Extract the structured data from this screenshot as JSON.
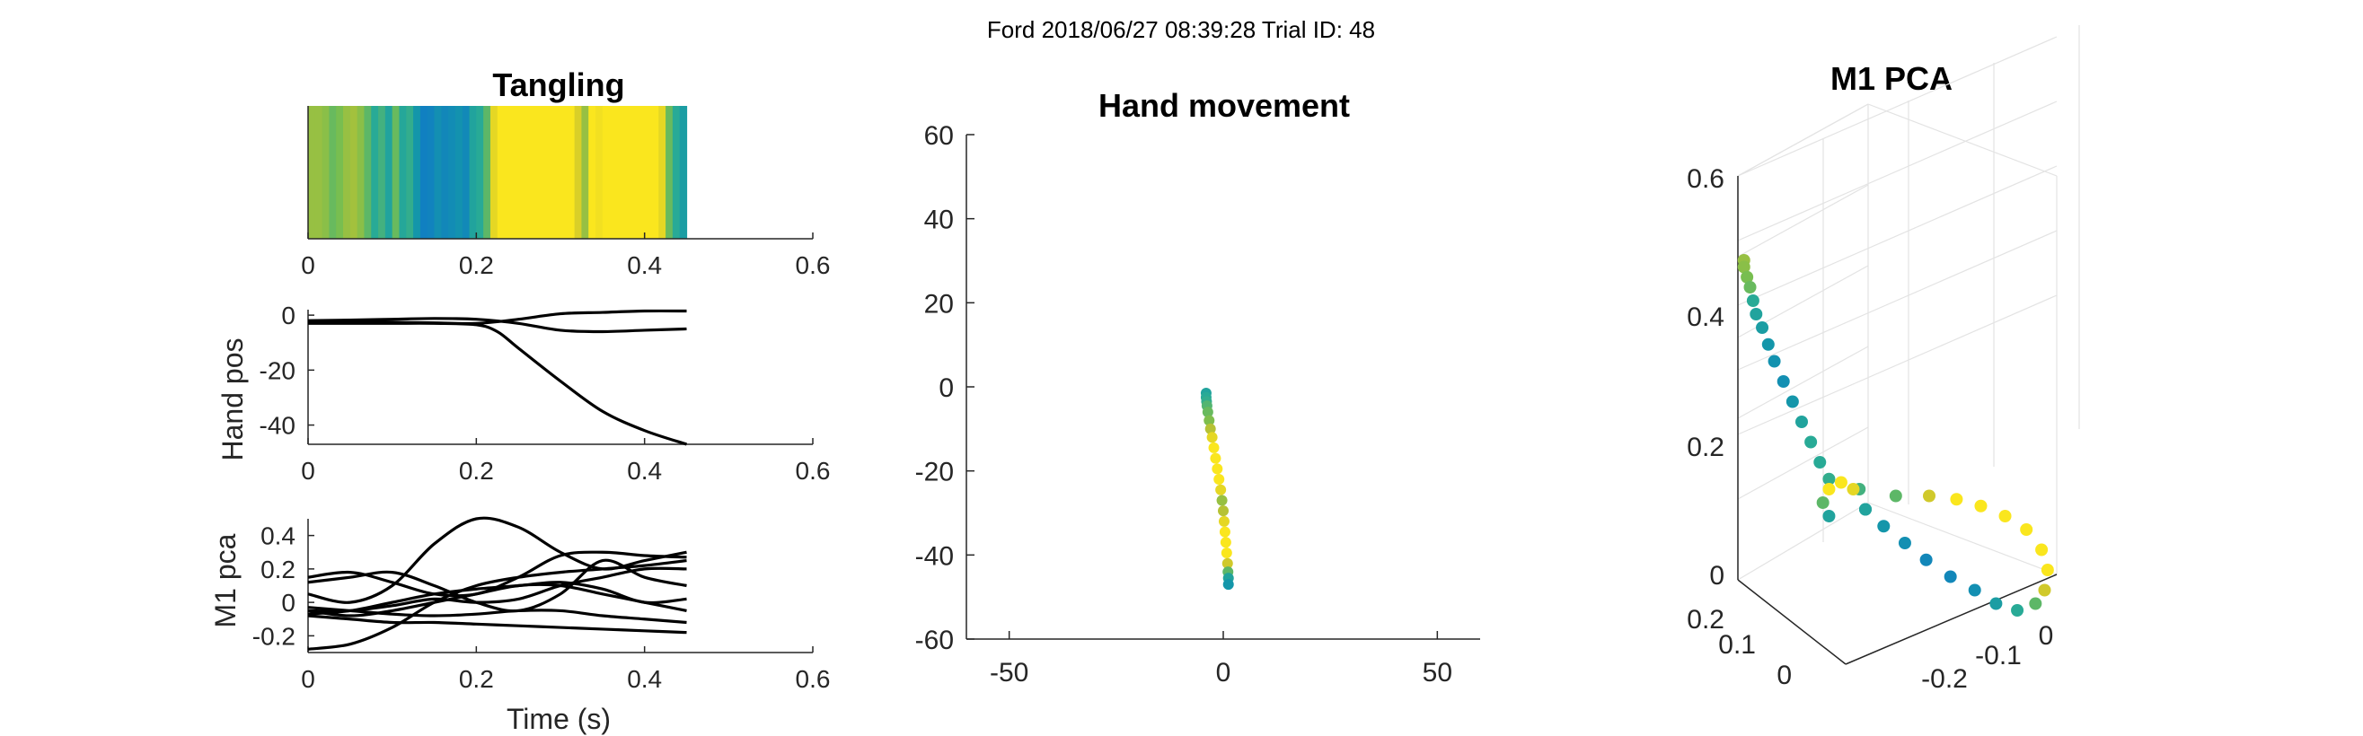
{
  "figure": {
    "suptitle": "Ford 2018/06/27 08:39:28 Trial ID: 48"
  },
  "chart_data": [
    {
      "id": "tangling",
      "type": "heatmap",
      "title": "Tangling",
      "xlim": [
        0,
        0.6
      ],
      "xticks": [
        "0",
        "0.2",
        "0.4",
        "0.6"
      ],
      "t_end": 0.45,
      "values": [
        0.8,
        0.8,
        0.78,
        0.72,
        0.75,
        0.8,
        0.82,
        0.78,
        0.7,
        0.6,
        0.65,
        0.55,
        0.72,
        0.58,
        0.62,
        0.45,
        0.3,
        0.32,
        0.4,
        0.35,
        0.38,
        0.42,
        0.36,
        0.55,
        0.6,
        0.7,
        0.95,
        1.0,
        1.0,
        1.0,
        1.0,
        1.0,
        1.0,
        1.0,
        1.0,
        1.0,
        1.0,
        1.0,
        0.92,
        0.8,
        1.0,
        0.98,
        1.0,
        1.0,
        1.0,
        1.0,
        1.0,
        1.0,
        1.0,
        1.0,
        0.95,
        0.72,
        0.6,
        0.5
      ],
      "colormap": "parula"
    },
    {
      "id": "hand-pos",
      "type": "line",
      "title": "",
      "ylabel": "Hand pos",
      "xlim": [
        0,
        0.6
      ],
      "ylim": [
        -47,
        2
      ],
      "xticks": [
        "0",
        "0.2",
        "0.4",
        "0.6"
      ],
      "yticks": [
        "0",
        "-20",
        "-40"
      ],
      "series": [
        {
          "x": [
            0,
            0.05,
            0.1,
            0.15,
            0.2,
            0.25,
            0.3,
            0.35,
            0.4,
            0.45
          ],
          "y": [
            -2.0,
            -1.8,
            -1.5,
            -1.2,
            -1.5,
            -3.0,
            -5.5,
            -6.0,
            -5.5,
            -5.0
          ]
        },
        {
          "x": [
            0,
            0.05,
            0.1,
            0.15,
            0.2,
            0.25,
            0.3,
            0.35,
            0.4,
            0.45
          ],
          "y": [
            -2.5,
            -2.5,
            -2.6,
            -2.8,
            -3.0,
            -1.5,
            0.5,
            1.0,
            1.5,
            1.5
          ]
        },
        {
          "x": [
            0,
            0.05,
            0.1,
            0.15,
            0.2,
            0.225,
            0.25,
            0.3,
            0.35,
            0.4,
            0.45
          ],
          "y": [
            -3.0,
            -3.0,
            -3.0,
            -3.0,
            -3.5,
            -6.0,
            -12.0,
            -24.0,
            -35.0,
            -42.0,
            -47.0
          ]
        }
      ]
    },
    {
      "id": "m1-pca-traces",
      "type": "line",
      "title": "",
      "xlabel": "Time (s)",
      "ylabel": "M1 pca",
      "xlim": [
        0,
        0.6
      ],
      "ylim": [
        -0.3,
        0.5
      ],
      "xticks": [
        "0",
        "0.2",
        "0.4",
        "0.6"
      ],
      "yticks": [
        "0.4",
        "0.2",
        "0",
        "-0.2"
      ],
      "series": [
        {
          "x": [
            0,
            0.05,
            0.1,
            0.15,
            0.2,
            0.25,
            0.3,
            0.35,
            0.4,
            0.45
          ],
          "y": [
            -0.28,
            -0.25,
            -0.15,
            0.0,
            0.1,
            0.15,
            0.18,
            0.2,
            0.22,
            0.25
          ]
        },
        {
          "x": [
            0,
            0.05,
            0.1,
            0.15,
            0.2,
            0.25,
            0.3,
            0.35,
            0.4,
            0.45
          ],
          "y": [
            0.05,
            0.0,
            0.1,
            0.35,
            0.5,
            0.45,
            0.3,
            0.2,
            0.25,
            0.3
          ]
        },
        {
          "x": [
            0,
            0.05,
            0.1,
            0.15,
            0.2,
            0.25,
            0.3,
            0.35,
            0.4,
            0.45
          ],
          "y": [
            0.15,
            0.18,
            0.12,
            0.05,
            0.05,
            0.15,
            0.28,
            0.3,
            0.28,
            0.27
          ]
        },
        {
          "x": [
            0,
            0.05,
            0.1,
            0.15,
            0.2,
            0.25,
            0.3,
            0.35,
            0.4,
            0.45
          ],
          "y": [
            0.12,
            0.15,
            0.18,
            0.1,
            0.0,
            -0.05,
            0.05,
            0.25,
            0.15,
            0.1
          ]
        },
        {
          "x": [
            0,
            0.05,
            0.1,
            0.15,
            0.2,
            0.25,
            0.3,
            0.35,
            0.4,
            0.45
          ],
          "y": [
            -0.05,
            -0.08,
            -0.05,
            0.0,
            0.05,
            0.1,
            0.1,
            0.05,
            0.0,
            -0.05
          ]
        },
        {
          "x": [
            0,
            0.05,
            0.1,
            0.15,
            0.2,
            0.25,
            0.3,
            0.35,
            0.4,
            0.45
          ],
          "y": [
            -0.03,
            -0.05,
            -0.07,
            -0.08,
            -0.07,
            -0.05,
            -0.05,
            -0.08,
            -0.1,
            -0.12
          ]
        },
        {
          "x": [
            0,
            0.05,
            0.1,
            0.15,
            0.2,
            0.25,
            0.3,
            0.35,
            0.4,
            0.45
          ],
          "y": [
            -0.07,
            -0.05,
            0.0,
            0.05,
            0.08,
            0.1,
            0.12,
            0.08,
            0.0,
            0.02
          ]
        },
        {
          "x": [
            0,
            0.05,
            0.1,
            0.15,
            0.2,
            0.25,
            0.3,
            0.35,
            0.4,
            0.45
          ],
          "y": [
            -0.08,
            -0.1,
            -0.12,
            -0.12,
            -0.13,
            -0.14,
            -0.15,
            -0.16,
            -0.17,
            -0.18
          ]
        },
        {
          "x": [
            0,
            0.05,
            0.1,
            0.15,
            0.2,
            0.25,
            0.3,
            0.35,
            0.4,
            0.45
          ],
          "y": [
            -0.05,
            -0.05,
            -0.02,
            0.02,
            0.0,
            0.02,
            0.1,
            0.15,
            0.2,
            0.2
          ]
        }
      ]
    },
    {
      "id": "hand-movement",
      "type": "scatter",
      "title": "Hand movement",
      "xlim": [
        -60,
        60
      ],
      "ylim": [
        -60,
        60
      ],
      "xticks": [
        "-50",
        "0",
        "50"
      ],
      "yticks": [
        "60",
        "40",
        "20",
        "0",
        "-20",
        "-40",
        "-60"
      ],
      "colormap": "parula",
      "points": [
        [
          -4.0,
          -1.5,
          0.55
        ],
        [
          -4.0,
          -2.5,
          0.6
        ],
        [
          -3.9,
          -3.5,
          0.62
        ],
        [
          -3.8,
          -4.5,
          0.68
        ],
        [
          -3.6,
          -6.0,
          0.72
        ],
        [
          -3.3,
          -8.0,
          0.76
        ],
        [
          -3.0,
          -10.0,
          0.85
        ],
        [
          -2.6,
          -12.0,
          0.95
        ],
        [
          -2.2,
          -14.5,
          1.0
        ],
        [
          -1.8,
          -17.0,
          1.0
        ],
        [
          -1.4,
          -19.5,
          1.0
        ],
        [
          -1.0,
          -22.0,
          1.0
        ],
        [
          -0.6,
          -24.5,
          0.95
        ],
        [
          -0.3,
          -27.0,
          0.8
        ],
        [
          0.0,
          -29.5,
          0.85
        ],
        [
          0.2,
          -32.0,
          0.95
        ],
        [
          0.4,
          -34.5,
          1.0
        ],
        [
          0.6,
          -37.0,
          1.0
        ],
        [
          0.8,
          -39.5,
          1.0
        ],
        [
          1.0,
          -42.0,
          0.9
        ],
        [
          1.1,
          -44.0,
          0.7
        ],
        [
          1.2,
          -45.5,
          0.55
        ],
        [
          1.2,
          -47.0,
          0.45
        ]
      ]
    },
    {
      "id": "m1-pca-3d",
      "type": "scatter",
      "title": "M1 PCA",
      "zticks": [
        "0.6",
        "0.4",
        "0.2",
        "0"
      ],
      "yticks": [
        "0.2",
        "0.1",
        "0"
      ],
      "xticks": [
        "0",
        "-0.1",
        "-0.2"
      ],
      "colormap": "parula",
      "points_projected_order": "trajectory",
      "points": [
        [
          0.72,
          0.98,
          0.8
        ],
        [
          0.72,
          0.96,
          0.78
        ],
        [
          0.73,
          0.93,
          0.75
        ],
        [
          0.74,
          0.9,
          0.72
        ],
        [
          0.75,
          0.86,
          0.6
        ],
        [
          0.76,
          0.82,
          0.55
        ],
        [
          0.78,
          0.78,
          0.5
        ],
        [
          0.8,
          0.73,
          0.45
        ],
        [
          0.82,
          0.68,
          0.42
        ],
        [
          0.85,
          0.62,
          0.4
        ],
        [
          0.88,
          0.56,
          0.45
        ],
        [
          0.91,
          0.5,
          0.55
        ],
        [
          0.94,
          0.44,
          0.6
        ],
        [
          0.97,
          0.38,
          0.6
        ],
        [
          1.0,
          0.33,
          0.62
        ],
        [
          1.1,
          0.3,
          0.65
        ],
        [
          1.22,
          0.28,
          0.7
        ],
        [
          1.33,
          0.28,
          0.9
        ],
        [
          1.42,
          0.27,
          1.0
        ],
        [
          1.5,
          0.25,
          1.0
        ],
        [
          1.58,
          0.22,
          1.0
        ],
        [
          1.65,
          0.18,
          1.0
        ],
        [
          1.7,
          0.12,
          1.0
        ],
        [
          1.72,
          0.06,
          1.0
        ],
        [
          1.71,
          0.0,
          0.9
        ],
        [
          1.68,
          -0.04,
          0.7
        ],
        [
          1.62,
          -0.06,
          0.6
        ],
        [
          1.55,
          -0.04,
          0.5
        ],
        [
          1.48,
          0.0,
          0.4
        ],
        [
          1.4,
          0.04,
          0.35
        ],
        [
          1.32,
          0.09,
          0.35
        ],
        [
          1.25,
          0.14,
          0.4
        ],
        [
          1.18,
          0.19,
          0.45
        ],
        [
          1.12,
          0.24,
          0.55
        ]
      ],
      "points_curl": [
        [
          1.12,
          0.24,
          0.55
        ],
        [
          1.08,
          0.3,
          0.95
        ],
        [
          1.04,
          0.32,
          1.0
        ],
        [
          1.0,
          0.3,
          1.0
        ],
        [
          0.98,
          0.26,
          0.7
        ],
        [
          1.0,
          0.22,
          0.55
        ]
      ]
    }
  ]
}
